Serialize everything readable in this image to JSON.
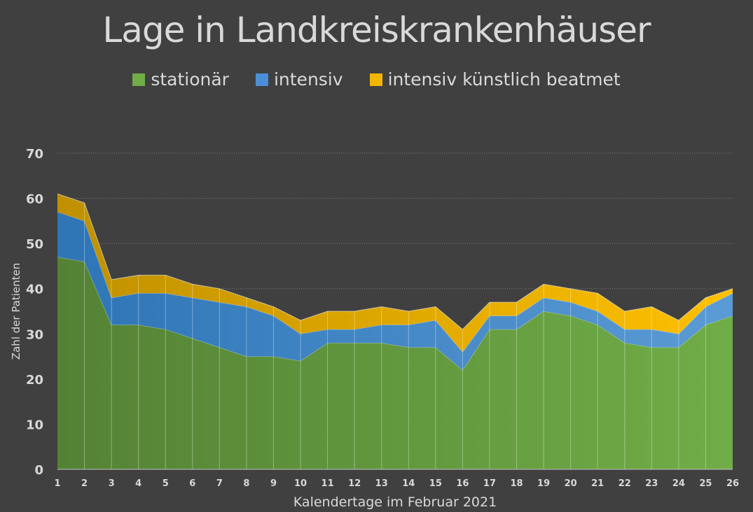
{
  "chart_data": {
    "type": "area",
    "stacked": true,
    "title": "Lage in Landkreiskrankenhäuser",
    "xlabel": "Kalendertage im Februar 2021",
    "ylabel": "Zahl der Patienten",
    "ylim": [
      0,
      70
    ],
    "yticks": [
      "0",
      "10",
      "20",
      "30",
      "40",
      "50",
      "60",
      "70"
    ],
    "grid": true,
    "legend_position": "top",
    "categories": [
      "1",
      "2",
      "3",
      "4",
      "5",
      "6",
      "7",
      "8",
      "9",
      "10",
      "11",
      "12",
      "13",
      "14",
      "15",
      "16",
      "17",
      "18",
      "19",
      "20",
      "21",
      "22",
      "23",
      "24",
      "25",
      "26"
    ],
    "series": [
      {
        "name": "stationär",
        "color": "#70ad47",
        "values": [
          47,
          46,
          32,
          32,
          31,
          29,
          27,
          25,
          25,
          24,
          28,
          28,
          28,
          27,
          27,
          22,
          31,
          31,
          35,
          34,
          32,
          28,
          27,
          27,
          32,
          34
        ]
      },
      {
        "name": "intensiv",
        "color": "#4a8fd8",
        "values": [
          10,
          9,
          6,
          7,
          8,
          9,
          10,
          11,
          9,
          6,
          3,
          3,
          4,
          5,
          6,
          4,
          3,
          3,
          3,
          3,
          3,
          3,
          4,
          3,
          4,
          5
        ]
      },
      {
        "name": "intensiv künstlich beatmet",
        "color": "#f2b600",
        "values": [
          4,
          4,
          4,
          4,
          4,
          3,
          3,
          2,
          2,
          3,
          4,
          4,
          4,
          3,
          3,
          5,
          3,
          3,
          3,
          3,
          4,
          4,
          5,
          3,
          2,
          1
        ]
      }
    ]
  }
}
